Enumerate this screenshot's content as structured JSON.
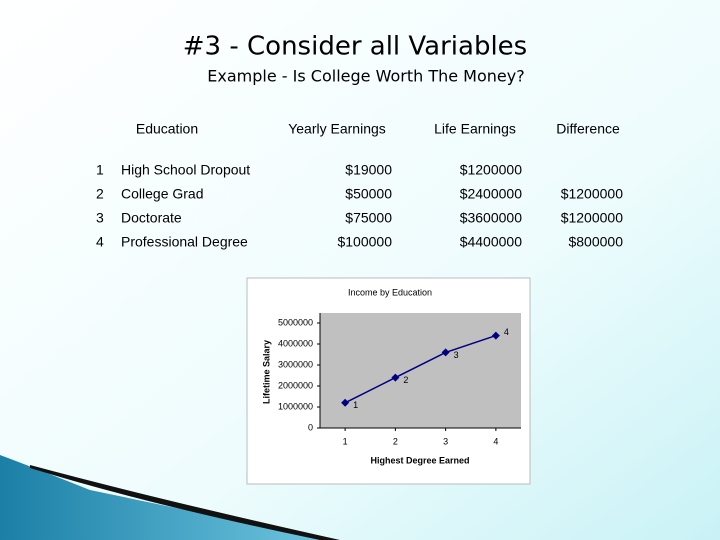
{
  "title": "#3 - Consider all Variables",
  "subtitle": "Example - Is College Worth The Money?",
  "table": {
    "headers": [
      "Education",
      "Yearly Earnings",
      "Life Earnings",
      "Difference"
    ],
    "rows": [
      {
        "number": "1",
        "education": "High School Dropout",
        "yearly": "$19000",
        "life": "$1200000"
      },
      {
        "number": "2",
        "education": "College Grad",
        "yearly": "$50000",
        "life": "$2400000",
        "difference": "$1200000"
      },
      {
        "number": "3",
        "education": "Doctorate",
        "yearly": "$75000",
        "life": "$3600000",
        "difference": "$1200000"
      },
      {
        "number": "4",
        "education": "Professional Degree",
        "yearly": "$100000",
        "life": "$4400000",
        "difference": "$800000"
      }
    ]
  },
  "chart_data": {
    "type": "line",
    "title": "Income by Education",
    "x_label": "Highest Degree Earned",
    "y_label": "Lifetime Salary",
    "x": [
      1,
      2,
      3,
      4
    ],
    "values": [
      1200000,
      2400000,
      3600000,
      4400000
    ],
    "color": "#000080",
    "xlim": [
      0.5,
      4.5
    ],
    "xticks": [
      1,
      2,
      3,
      4
    ],
    "ylim": [
      0,
      5000000
    ],
    "yticks": [
      0,
      1000000,
      2000000,
      3000000,
      4000000,
      5000000
    ],
    "plot_background": "#c0c0c0",
    "grid": false
  }
}
